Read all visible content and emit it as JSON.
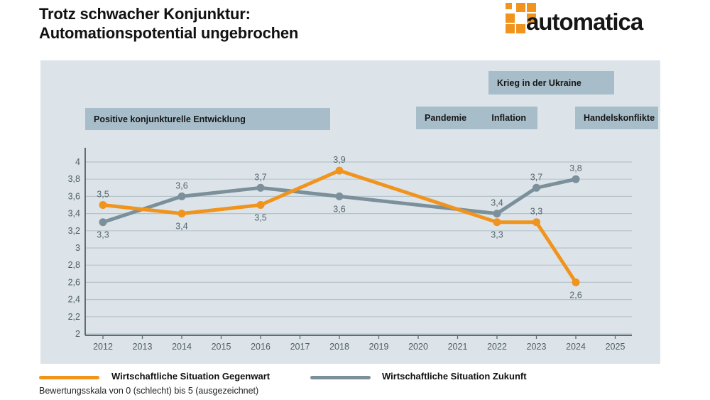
{
  "header": {
    "title_line1": "Trotz schwacher Konjunktur:",
    "title_line2": "Automationspotential ungebrochen"
  },
  "logo": {
    "text": "automatica",
    "brand_orange": "#f0941e"
  },
  "annotations": {
    "positive": "Positive konjunkturelle Entwicklung",
    "krieg": "Krieg in der Ukraine",
    "pandemie": "Pandemie",
    "inflation": "Inflation",
    "handel": "Handelskonflikte"
  },
  "chart_data": {
    "type": "line",
    "x": [
      2012,
      2014,
      2016,
      2018,
      2022,
      2023,
      2024
    ],
    "x_axis_ticks": [
      2012,
      2013,
      2014,
      2015,
      2016,
      2017,
      2018,
      2019,
      2020,
      2021,
      2022,
      2023,
      2024,
      2025
    ],
    "ylim": [
      2,
      4
    ],
    "y_tick_step": 0.2,
    "y_tick_labels_top_to_bottom": [
      "4",
      "3,8",
      "3,6",
      "3,4",
      "3,2",
      "3",
      "2,8",
      "2,6",
      "2,4",
      "2,2",
      "2"
    ],
    "grid": true,
    "legend_position": "bottom",
    "series": [
      {
        "name": "Wirtschaftliche Situation Zukunft",
        "color": "#7b909b",
        "values": [
          3.3,
          3.6,
          3.7,
          3.6,
          3.4,
          3.7,
          3.8
        ],
        "data_labels": [
          "3,3",
          "3,6",
          "3,7",
          "3,6",
          "3,4",
          "3,7",
          "3,8"
        ],
        "label_placement": [
          "below",
          "above",
          "above",
          "below",
          "above",
          "above",
          "above"
        ]
      },
      {
        "name": "Wirtschaftliche Situation Gegenwart",
        "color": "#f0941e",
        "values": [
          3.5,
          3.4,
          3.5,
          3.9,
          3.3,
          3.3,
          2.6
        ],
        "data_labels": [
          "3,5",
          "3,4",
          "3,5",
          "3,9",
          "3,3",
          "3,3",
          "2,6"
        ],
        "label_placement": [
          "above",
          "below",
          "below",
          "above",
          "below",
          "above",
          "below"
        ]
      }
    ],
    "colors": {
      "panel_bg": "#dce4e9",
      "annotation_bg": "#a7bdc9",
      "gridline": "#b6c3ca",
      "axis": "#5d6d76",
      "tick_text": "#4f5e67",
      "data_label_text": "#55656e"
    }
  },
  "legend": {
    "gegenwart_label": "Wirtschaftliche Situation Gegenwart",
    "zukunft_label": "Wirtschaftliche Situation Zukunft"
  },
  "footnote": "Bewertungsskala von 0 (schlecht) bis 5 (ausgezeichnet)"
}
